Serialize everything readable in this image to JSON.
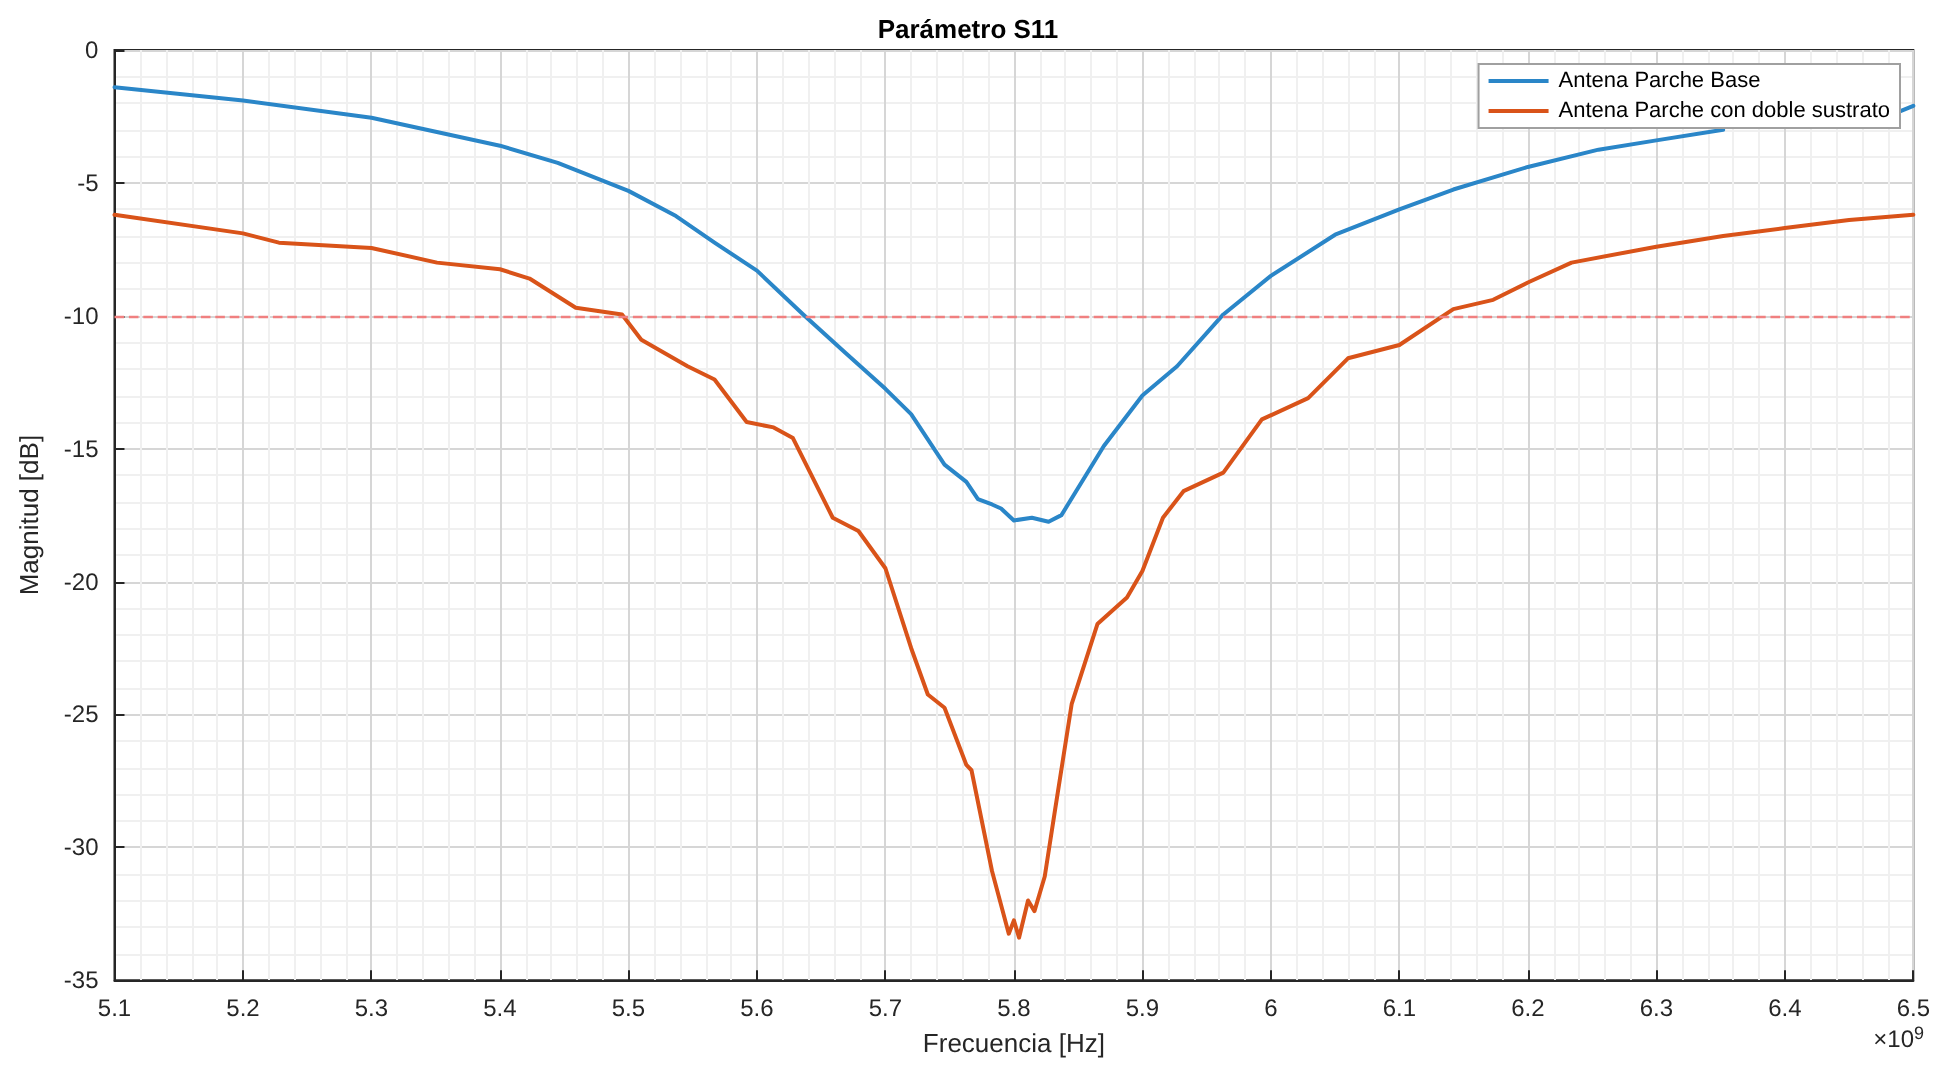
{
  "chart_data": {
    "type": "line",
    "title": "Parámetro S11",
    "xlabel": "Frecuencia [Hz]",
    "ylabel": "Magnitud [dB]",
    "annotations": [
      "×10$^{9}$"
    ],
    "xlim": [
      5.1,
      6.5
    ],
    "xticks": [
      5.1,
      5.2,
      5.3,
      5.4,
      5.5,
      5.6,
      5.7,
      5.8,
      5.9,
      6,
      6.1,
      6.2,
      6.3,
      6.4,
      6.5
    ],
    "ylim": [
      -35,
      0
    ],
    "yticks": [
      -35,
      -30,
      -25,
      -20,
      -15,
      -10,
      -5,
      0
    ],
    "grid": true,
    "legend": "top right",
    "marker": "none",
    "line_style": "solid",
    "ref_lines": [
      {
        "axis": "y",
        "value": -10,
        "color": "#f08080",
        "line_style": "dashed"
      }
    ],
    "series": [
      {
        "name": "Antena Parche Base",
        "color": "#2a86c8",
        "x": [
          5.1,
          5.2,
          5.3,
          5.4,
          5.445,
          5.5,
          5.537,
          5.567,
          5.6,
          5.636,
          5.669,
          5.7,
          5.72,
          5.746,
          5.763,
          5.772,
          5.783,
          5.79,
          5.8,
          5.814,
          5.827,
          5.837,
          5.87,
          5.9,
          5.927,
          5.963,
          6.0,
          6.05,
          6.1,
          6.142,
          6.2,
          6.255,
          6.3,
          6.352,
          6.4,
          6.49,
          6.5
        ],
        "values": [
          -1.4,
          -1.9,
          -2.55,
          -3.6,
          -4.25,
          -5.3,
          -6.25,
          -7.25,
          -8.3,
          -9.95,
          -11.4,
          -12.75,
          -13.7,
          -15.6,
          -16.25,
          -16.9,
          -17.1,
          -17.25,
          -17.7,
          -17.6,
          -17.75,
          -17.5,
          -14.9,
          -13.0,
          -11.9,
          -9.95,
          -8.5,
          -6.95,
          -6.0,
          -5.25,
          -4.4,
          -3.75,
          -3.4,
          -3.0,
          null,
          -2.3,
          -2.1
        ]
      },
      {
        "name": "Antena Parche con doble sustrato",
        "color": "#d95319",
        "x": [
          5.1,
          5.2,
          5.228,
          5.3,
          5.351,
          5.4,
          5.423,
          5.459,
          5.495,
          5.51,
          5.546,
          5.567,
          5.592,
          5.613,
          5.628,
          5.659,
          5.679,
          5.7,
          5.72,
          5.733,
          5.746,
          5.763,
          5.767,
          5.783,
          5.796,
          5.8,
          5.804,
          5.811,
          5.816,
          5.824,
          5.832,
          5.845,
          5.865,
          5.888,
          5.9,
          5.916,
          5.932,
          5.963,
          5.993,
          6.029,
          6.06,
          6.1,
          6.142,
          6.173,
          6.2,
          6.234,
          6.3,
          6.352,
          6.4,
          6.45,
          6.5
        ],
        "values": [
          -6.2,
          -6.9,
          -7.25,
          -7.45,
          -8.0,
          -8.25,
          -8.6,
          -9.7,
          -9.95,
          -10.9,
          -11.9,
          -12.4,
          -14.0,
          -14.2,
          -14.6,
          -17.6,
          -18.1,
          -19.5,
          -22.5,
          -24.25,
          -24.75,
          -26.9,
          -27.1,
          -30.9,
          -33.25,
          -32.75,
          -33.4,
          -32.0,
          -32.4,
          -31.1,
          -28.6,
          -24.6,
          -21.6,
          -20.6,
          -19.6,
          -17.6,
          -16.6,
          -15.9,
          -13.9,
          -13.1,
          -11.6,
          -11.1,
          -9.75,
          -9.4,
          -8.75,
          -8.0,
          -7.4,
          -7.0,
          -6.7,
          -6.4,
          -6.2
        ]
      }
    ]
  }
}
